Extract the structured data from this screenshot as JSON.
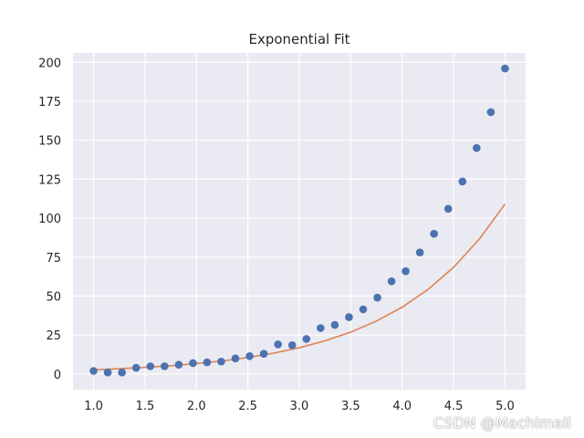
{
  "chart_data": {
    "type": "scatter",
    "title": "Exponential Fit",
    "xlabel": "",
    "ylabel": "",
    "xlim": [
      0.8,
      5.2
    ],
    "ylim": [
      -10,
      206
    ],
    "x_ticks": [
      1.0,
      1.5,
      2.0,
      2.5,
      3.0,
      3.5,
      4.0,
      4.5,
      5.0
    ],
    "x_tick_labels": [
      "1.0",
      "1.5",
      "2.0",
      "2.5",
      "3.0",
      "3.5",
      "4.0",
      "4.5",
      "5.0"
    ],
    "y_ticks": [
      0,
      25,
      50,
      75,
      100,
      125,
      150,
      175,
      200
    ],
    "y_tick_labels": [
      "0",
      "25",
      "50",
      "75",
      "100",
      "125",
      "150",
      "175",
      "200"
    ],
    "grid": true,
    "background": "#eaeaf2",
    "series": [
      {
        "type": "scatter",
        "color": "#4c72b0",
        "x": [
          1.0,
          1.138,
          1.276,
          1.414,
          1.552,
          1.69,
          1.828,
          1.966,
          2.103,
          2.241,
          2.379,
          2.517,
          2.655,
          2.793,
          2.931,
          3.069,
          3.207,
          3.345,
          3.483,
          3.621,
          3.759,
          3.897,
          4.034,
          4.172,
          4.31,
          4.448,
          4.586,
          4.724,
          4.862,
          5.0
        ],
        "y": [
          2,
          1,
          1,
          4,
          5,
          5,
          6,
          7,
          7.5,
          8,
          10,
          11.5,
          13,
          19,
          18.5,
          22.5,
          29.5,
          31.5,
          36.5,
          41.5,
          49,
          59.5,
          66,
          78,
          90,
          106,
          123.5,
          145,
          168,
          196
        ]
      },
      {
        "type": "line",
        "color": "#dd8452",
        "x": [
          1.0,
          1.25,
          1.5,
          1.75,
          2.0,
          2.25,
          2.5,
          2.75,
          3.0,
          3.25,
          3.5,
          3.75,
          4.0,
          4.25,
          4.5,
          4.75,
          5.0
        ],
        "y": [
          2.7,
          3.4,
          4.3,
          5.3,
          6.7,
          8.4,
          10.6,
          13.4,
          16.9,
          21.3,
          26.9,
          34.0,
          42.9,
          54.2,
          68.5,
          86.5,
          109.1
        ]
      }
    ]
  },
  "watermark": "CSDN @Machimail"
}
